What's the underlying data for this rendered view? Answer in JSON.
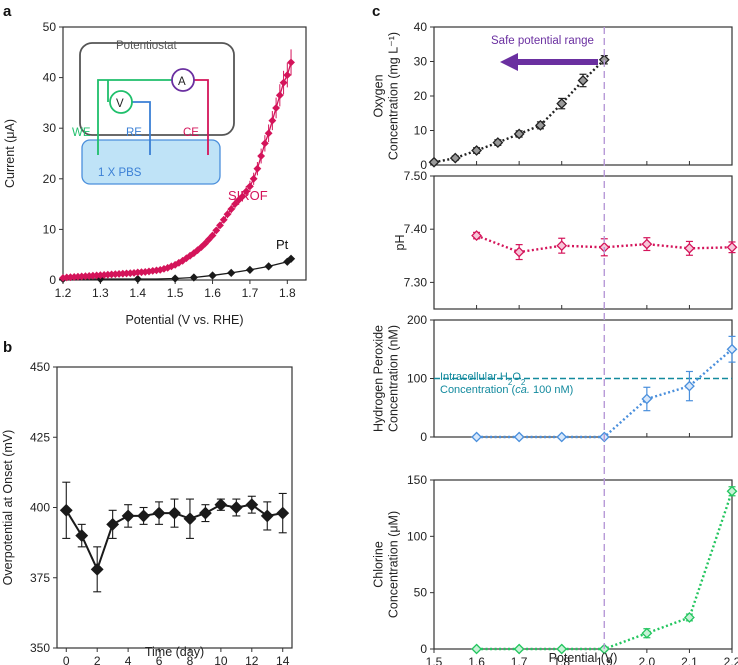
{
  "panels": {
    "a": "a",
    "b": "b",
    "c": "c"
  },
  "colors": {
    "black": "#1a1a1a",
    "magenta": "#d4145a",
    "green_we": "#1fbf6b",
    "blue_re": "#3a7fd5",
    "purple": "#6a2fa0",
    "teal": "#138a9e",
    "o2": "#222222",
    "ph": "#d4145a",
    "h2o2": "#4a8fdc",
    "cl": "#22c55e",
    "pbs_fill": "#bfe3f7",
    "vline": "#b89ad8"
  },
  "chart_data": [
    {
      "id": "a",
      "type": "line",
      "title": "",
      "xlabel": "Potential (V vs. RHE)",
      "ylabel": "Current (μA)",
      "xlim": [
        1.2,
        1.85
      ],
      "ylim": [
        0,
        50
      ],
      "xticks": [
        "1.2",
        "1.3",
        "1.4",
        "1.5",
        "1.6",
        "1.7",
        "1.8"
      ],
      "yticks": [
        "0",
        "10",
        "20",
        "30",
        "40",
        "50"
      ],
      "series": [
        {
          "name": "SIROF",
          "x": [
            1.2,
            1.21,
            1.22,
            1.23,
            1.24,
            1.25,
            1.26,
            1.27,
            1.28,
            1.29,
            1.3,
            1.31,
            1.32,
            1.33,
            1.34,
            1.35,
            1.36,
            1.37,
            1.38,
            1.39,
            1.4,
            1.41,
            1.42,
            1.43,
            1.44,
            1.45,
            1.46,
            1.47,
            1.48,
            1.49,
            1.5,
            1.51,
            1.52,
            1.53,
            1.54,
            1.55,
            1.56,
            1.57,
            1.58,
            1.59,
            1.6,
            1.61,
            1.62,
            1.63,
            1.64,
            1.65,
            1.66,
            1.67,
            1.68,
            1.69,
            1.7,
            1.71,
            1.72,
            1.73,
            1.74,
            1.75,
            1.76,
            1.77,
            1.78,
            1.79,
            1.8,
            1.81
          ],
          "y": [
            0.4,
            0.5,
            0.55,
            0.6,
            0.65,
            0.7,
            0.75,
            0.8,
            0.85,
            0.9,
            0.95,
            1.0,
            1.05,
            1.1,
            1.15,
            1.2,
            1.25,
            1.3,
            1.35,
            1.4,
            1.5,
            1.55,
            1.6,
            1.7,
            1.8,
            1.9,
            2.0,
            2.2,
            2.4,
            2.7,
            3.0,
            3.4,
            3.8,
            4.3,
            4.8,
            5.3,
            5.9,
            6.5,
            7.2,
            8.0,
            8.8,
            9.8,
            10.8,
            11.9,
            13.0,
            14.0,
            15.0,
            15.8,
            16.5,
            17.5,
            18.5,
            20.0,
            22.0,
            24.5,
            27.0,
            29.0,
            31.5,
            34.0,
            36.5,
            39.0,
            40.5,
            43.0
          ]
        },
        {
          "name": "Pt",
          "x": [
            1.2,
            1.25,
            1.3,
            1.35,
            1.4,
            1.45,
            1.5,
            1.55,
            1.6,
            1.65,
            1.7,
            1.75,
            1.8,
            1.81
          ],
          "y": [
            0.2,
            0.2,
            0.2,
            0.2,
            0.2,
            0.2,
            0.3,
            0.5,
            0.9,
            1.4,
            2.0,
            2.7,
            3.6,
            4.2
          ]
        }
      ]
    },
    {
      "id": "b",
      "type": "line",
      "title": "",
      "xlabel": "Time (day)",
      "ylabel": "Overpotential at Onset (mV)",
      "xlim": [
        -0.6,
        14.6
      ],
      "ylim": [
        350,
        450
      ],
      "xticks": [
        "0",
        "2",
        "4",
        "6",
        "8",
        "10",
        "12",
        "14"
      ],
      "yticks": [
        "350",
        "375",
        "400",
        "425",
        "450"
      ],
      "series": [
        {
          "name": "Overpotential",
          "x": [
            0,
            1,
            2,
            3,
            4,
            5,
            6,
            7,
            8,
            9,
            10,
            11,
            12,
            13,
            14
          ],
          "y": [
            399,
            390,
            378,
            394,
            397,
            397,
            398,
            398,
            396,
            398,
            401,
            400,
            401,
            397,
            398
          ],
          "err": [
            10,
            4,
            8,
            5,
            4,
            3,
            4,
            5,
            7,
            3,
            2,
            3,
            3,
            5,
            7
          ]
        }
      ]
    },
    {
      "id": "c1",
      "type": "line",
      "title": "",
      "xlabel": "",
      "ylabel": "Oxygen Concentration (mg L⁻¹)",
      "xlim": [
        1.5,
        2.2
      ],
      "ylim": [
        0,
        40
      ],
      "yticks": [
        "0",
        "10",
        "20",
        "30",
        "40"
      ],
      "series": [
        {
          "name": "Oxygen",
          "x": [
            1.5,
            1.55,
            1.6,
            1.65,
            1.7,
            1.75,
            1.8,
            1.85,
            1.9
          ],
          "y": [
            0.8,
            2.0,
            4.2,
            6.5,
            9.0,
            11.5,
            17.8,
            24.5,
            30.5
          ],
          "err": [
            0.5,
            0.6,
            0.8,
            0.8,
            0.9,
            1.0,
            1.5,
            1.8,
            1.2
          ]
        }
      ]
    },
    {
      "id": "c2",
      "type": "line",
      "title": "",
      "xlabel": "",
      "ylabel": "pH",
      "xlim": [
        1.5,
        2.2
      ],
      "ylim": [
        7.25,
        7.5
      ],
      "yticks": [
        "7.30",
        "7.40",
        "7.50"
      ],
      "series": [
        {
          "name": "pH",
          "x": [
            1.6,
            1.7,
            1.8,
            1.9,
            2.0,
            2.1,
            2.2
          ],
          "y": [
            7.388,
            7.357,
            7.369,
            7.366,
            7.372,
            7.364,
            7.366
          ],
          "err": [
            0.006,
            0.014,
            0.014,
            0.016,
            0.012,
            0.013,
            0.01
          ]
        }
      ]
    },
    {
      "id": "c3",
      "type": "line",
      "title": "",
      "xlabel": "",
      "ylabel": "Hydrogen Peroxide Concentration (nM)",
      "xlim": [
        1.5,
        2.2
      ],
      "ylim": [
        0,
        200
      ],
      "yticks": [
        "0",
        "100",
        "200"
      ],
      "series": [
        {
          "name": "H2O2",
          "x": [
            1.6,
            1.7,
            1.8,
            1.9,
            2.0,
            2.1,
            2.2
          ],
          "y": [
            0,
            0,
            0,
            0,
            65,
            87,
            150
          ],
          "err": [
            0,
            0,
            0,
            0,
            20,
            25,
            22
          ]
        }
      ],
      "reference_line": 100
    },
    {
      "id": "c4",
      "type": "line",
      "title": "",
      "xlabel": "Potential (V)",
      "ylabel": "Chlorine Concentration (μM)",
      "xlim": [
        1.5,
        2.2
      ],
      "ylim": [
        0,
        150
      ],
      "xticks": [
        "1.5",
        "1.6",
        "1.7",
        "1.8",
        "1.9",
        "2.0",
        "2.1",
        "2.2"
      ],
      "yticks": [
        "0",
        "50",
        "100",
        "150"
      ],
      "series": [
        {
          "name": "Chlorine",
          "x": [
            1.6,
            1.7,
            1.8,
            1.9,
            2.0,
            2.1,
            2.2
          ],
          "y": [
            0,
            0,
            0,
            0,
            14,
            28,
            140
          ],
          "err": [
            0,
            0,
            0,
            0,
            4,
            3,
            4
          ]
        }
      ]
    }
  ],
  "inset": {
    "potentiostat": "Potentiostat",
    "a_meter": "A",
    "v_meter": "V",
    "we": "WE",
    "re": "RE",
    "ce": "CE",
    "pbs": "1 X PBS"
  },
  "labels": {
    "sirof": "SIROF",
    "pt": "Pt",
    "safe_range": "Safe potential range",
    "intracellular_line1": "Intracellular H",
    "intracellular_sub": "2",
    "intracellular_o": "O",
    "intracellular_sub2": "2",
    "intracellular_line2a": "Concentration (",
    "intracellular_ca": "ca.",
    "intracellular_line2b": " 100 nM)"
  },
  "ylabels_split": {
    "a": [
      "Current (μA)"
    ],
    "b": [
      "Overpotential at Onset (mV)"
    ],
    "c1": [
      "Oxygen",
      "Concentration (mg L⁻¹)"
    ],
    "c2": [
      "pH"
    ],
    "c3": [
      "Hydrogen Peroxide",
      "Concentration (nM)"
    ],
    "c4": [
      "Chlorine",
      "Concentration (μM)"
    ]
  }
}
